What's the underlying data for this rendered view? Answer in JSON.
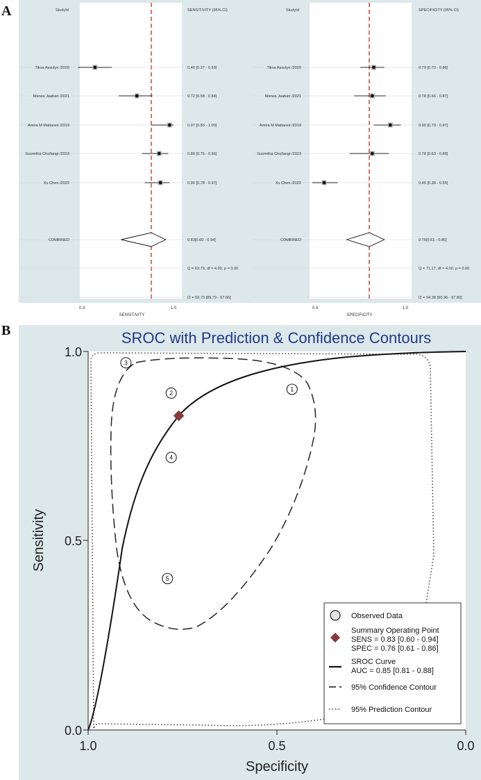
{
  "panels": {
    "a_label": "A",
    "b_label": "B"
  },
  "chart_data": [
    {
      "type": "forest",
      "panel": "A-left",
      "header_study": "StudyId",
      "header_value": "SENSITIVITY (95% CI)",
      "xlabel": "SENSITIVITY",
      "xlim": [
        0.3,
        1.0
      ],
      "x_ticks": [
        "0.3",
        "1.0"
      ],
      "combined_line": 0.83,
      "studies": [
        {
          "name": "Tikva Assulyn /2020",
          "est": 0.4,
          "lo": 0.27,
          "hi": 0.53,
          "text": "0.40 [0.27 - 0.53]"
        },
        {
          "name": "Marwa Jaaban /2021",
          "est": 0.72,
          "lo": 0.58,
          "hi": 0.84,
          "text": "0.72 [0.58 - 0.84]"
        },
        {
          "name": "Amira M Mattared /2019",
          "est": 0.97,
          "lo": 0.83,
          "hi": 1.0,
          "text": "0.97 [0.83 - 1.00]"
        },
        {
          "name": "Susmitha Chollangi /2023",
          "est": 0.89,
          "lo": 0.76,
          "hi": 0.96,
          "text": "0.89 [0.76 - 0.96]"
        },
        {
          "name": "Xu Chen /2022",
          "est": 0.9,
          "lo": 0.78,
          "hi": 0.97,
          "text": "0.90 [0.78 - 0.97]"
        }
      ],
      "combined": {
        "name": "COMBINED",
        "est": 0.83,
        "lo": 0.6,
        "hi": 0.94,
        "text": "0.83[0.60 - 0.94]"
      },
      "q_text": "Q = 63.79, df = 4.00, p =  0.00",
      "i2_text": "I2 = 93.73 [89.79 - 97.66]"
    },
    {
      "type": "forest",
      "panel": "A-right",
      "header_study": "StudyId",
      "header_value": "SPECIFICITY (95% CI)",
      "xlabel": "SPECIFICITY",
      "xlim": [
        0.4,
        1.0
      ],
      "x_ticks": [
        "0.4",
        "1.0"
      ],
      "combined_line": 0.76,
      "studies": [
        {
          "name": "Tikva Assulyn /2020",
          "est": 0.79,
          "lo": 0.7,
          "hi": 0.86,
          "text": "0.79 [0.70 - 0.86]"
        },
        {
          "name": "Marwa Jaaban /2021",
          "est": 0.78,
          "lo": 0.66,
          "hi": 0.87,
          "text": "0.78 [0.66 - 0.87]"
        },
        {
          "name": "Amira M Mattared /2019",
          "est": 0.9,
          "lo": 0.79,
          "hi": 0.97,
          "text": "0.90 [0.79 - 0.97]"
        },
        {
          "name": "Susmitha Chollangi /2023",
          "est": 0.78,
          "lo": 0.63,
          "hi": 0.89,
          "text": "0.78 [0.63 - 0.89]"
        },
        {
          "name": "Xu Chen /2022",
          "est": 0.46,
          "lo": 0.38,
          "hi": 0.55,
          "text": "0.46 [0.38 - 0.55]"
        }
      ],
      "combined": {
        "name": "COMBINED",
        "est": 0.76,
        "lo": 0.61,
        "hi": 0.86,
        "text": "0.76[0.61 - 0.86]"
      },
      "q_text": "Q = 71.17, df = 4.00, p =  0.00",
      "i2_text": "I2 = 94.38 [90.96 - 97.80]"
    },
    {
      "type": "sroc",
      "panel": "B",
      "title": "SROC with Prediction & Confidence Contours",
      "xlabel": "Specificity",
      "ylabel": "Sensitivity",
      "xlim": [
        1.0,
        0.0
      ],
      "ylim": [
        0.0,
        1.0
      ],
      "x_ticks": [
        "1.0",
        "0.5",
        "0.0"
      ],
      "y_ticks": [
        "0.0",
        "0.5",
        "1.0"
      ],
      "points": [
        {
          "label": "1",
          "spec": 0.46,
          "sens": 0.9
        },
        {
          "label": "2",
          "spec": 0.78,
          "sens": 0.89
        },
        {
          "label": "3",
          "spec": 0.9,
          "sens": 0.97
        },
        {
          "label": "4",
          "spec": 0.78,
          "sens": 0.72
        },
        {
          "label": "5",
          "spec": 0.79,
          "sens": 0.4
        }
      ],
      "summary": {
        "spec": 0.76,
        "sens": 0.83
      },
      "auc": 0.85,
      "colors": {
        "summary": "#8b3a3a",
        "title": "#1f3a8a",
        "background": "#dde8ea"
      },
      "legend": {
        "observed": "Observed Data",
        "summary_title": "Summary Operating Point",
        "sens_text": "SENS = 0.83 [0.60 - 0.94]",
        "spec_text": "SPEC = 0.76 [0.61 - 0.86]",
        "sroc_title": "SROC Curve",
        "auc_text": "AUC = 0.85 [0.81 - 0.88]",
        "confidence": "95% Confidence Contour",
        "prediction": "95% Prediction Contour"
      }
    }
  ]
}
